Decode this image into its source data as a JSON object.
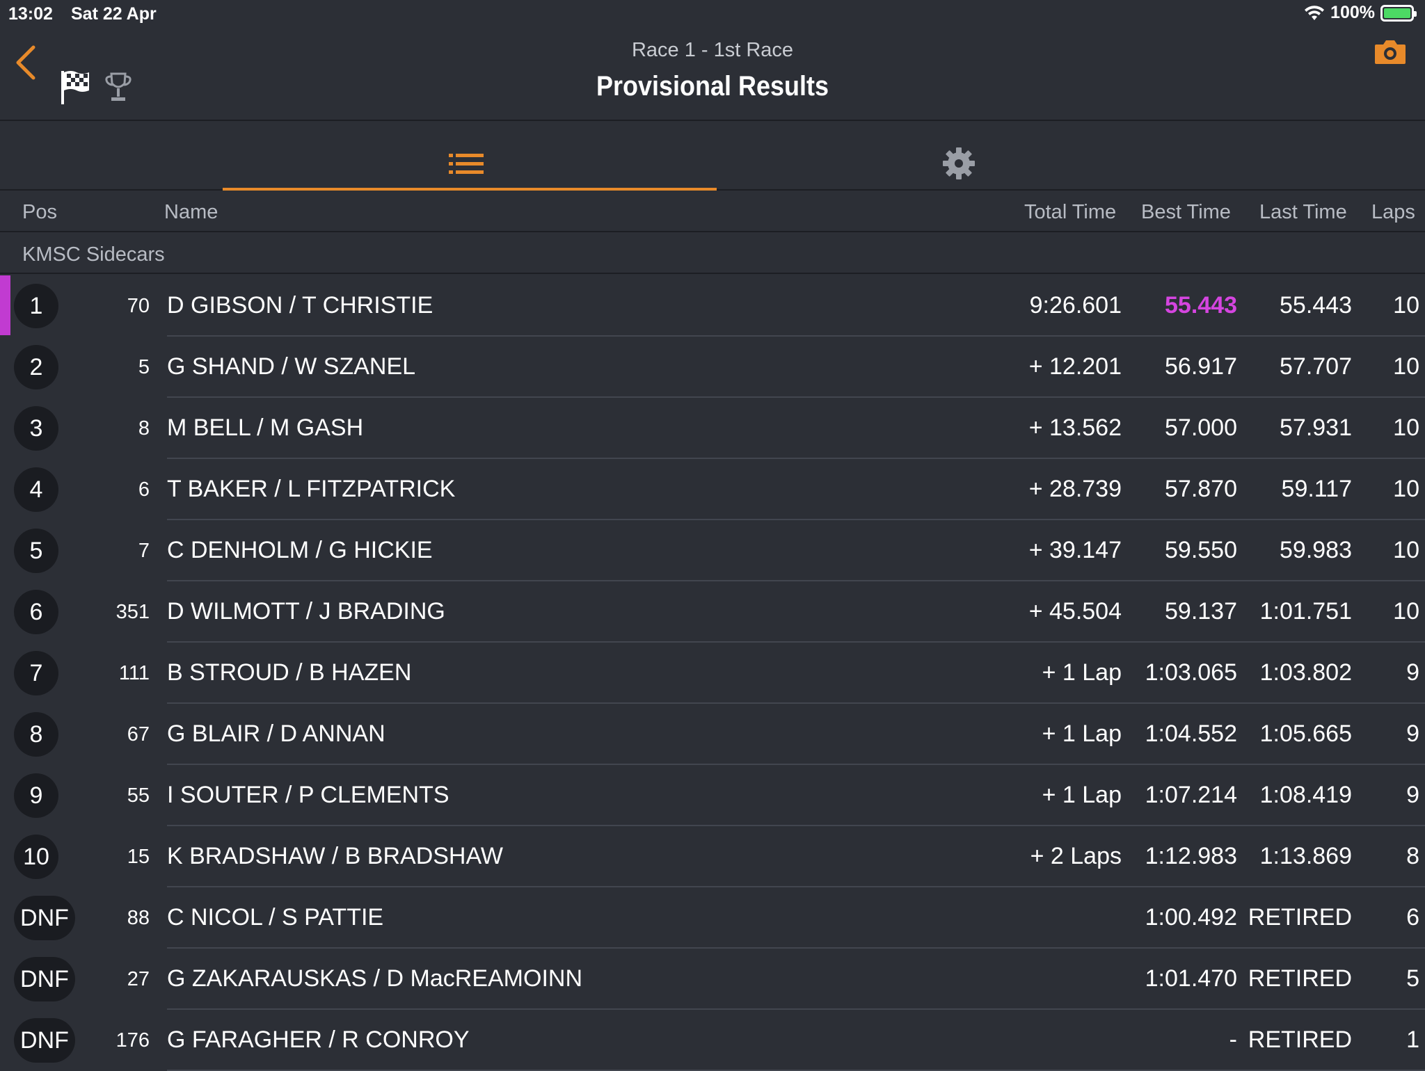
{
  "status": {
    "time": "13:02",
    "date": "Sat 22 Apr",
    "battery": "100%"
  },
  "nav": {
    "subtitle": "Race 1 - 1st Race",
    "title": "Provisional Results"
  },
  "columns": {
    "pos": "Pos",
    "name": "Name",
    "total": "Total Time",
    "best": "Best Time",
    "last": "Last Time",
    "laps": "Laps"
  },
  "class_name": "KMSC Sidecars",
  "colors": {
    "accent": "#e88a2a",
    "fastest": "#d545e0",
    "background": "#2c2f36"
  },
  "results": [
    {
      "pos": "1",
      "num": "70",
      "name": "D GIBSON / T CHRISTIE",
      "total": "9:26.601",
      "best": "55.443",
      "last": "55.443",
      "laps": "10",
      "fastest": true
    },
    {
      "pos": "2",
      "num": "5",
      "name": "G SHAND / W SZANEL",
      "total": "+ 12.201",
      "best": "56.917",
      "last": "57.707",
      "laps": "10"
    },
    {
      "pos": "3",
      "num": "8",
      "name": "M BELL / M GASH",
      "total": "+ 13.562",
      "best": "57.000",
      "last": "57.931",
      "laps": "10"
    },
    {
      "pos": "4",
      "num": "6",
      "name": "T BAKER / L FITZPATRICK",
      "total": "+ 28.739",
      "best": "57.870",
      "last": "59.117",
      "laps": "10"
    },
    {
      "pos": "5",
      "num": "7",
      "name": "C DENHOLM / G HICKIE",
      "total": "+ 39.147",
      "best": "59.550",
      "last": "59.983",
      "laps": "10"
    },
    {
      "pos": "6",
      "num": "351",
      "name": "D WILMOTT / J BRADING",
      "total": "+ 45.504",
      "best": "59.137",
      "last": "1:01.751",
      "laps": "10"
    },
    {
      "pos": "7",
      "num": "111",
      "name": "B STROUD / B HAZEN",
      "total": "+ 1 Lap",
      "best": "1:03.065",
      "last": "1:03.802",
      "laps": "9"
    },
    {
      "pos": "8",
      "num": "67",
      "name": "G BLAIR / D ANNAN",
      "total": "+ 1 Lap",
      "best": "1:04.552",
      "last": "1:05.665",
      "laps": "9"
    },
    {
      "pos": "9",
      "num": "55",
      "name": "I SOUTER / P CLEMENTS",
      "total": "+ 1 Lap",
      "best": "1:07.214",
      "last": "1:08.419",
      "laps": "9"
    },
    {
      "pos": "10",
      "num": "15",
      "name": "K BRADSHAW / B BRADSHAW",
      "total": "+ 2 Laps",
      "best": "1:12.983",
      "last": "1:13.869",
      "laps": "8"
    },
    {
      "pos": "DNF",
      "num": "88",
      "name": "C NICOL / S PATTIE",
      "total": "",
      "best": "1:00.492",
      "last": "RETIRED",
      "laps": "6"
    },
    {
      "pos": "DNF",
      "num": "27",
      "name": "G ZAKARAUSKAS / D MacREAMOINN",
      "total": "",
      "best": "1:01.470",
      "last": "RETIRED",
      "laps": "5"
    },
    {
      "pos": "DNF",
      "num": "176",
      "name": "G FARAGHER / R CONROY",
      "total": "",
      "best": "-",
      "last": "RETIRED",
      "laps": "1"
    }
  ]
}
